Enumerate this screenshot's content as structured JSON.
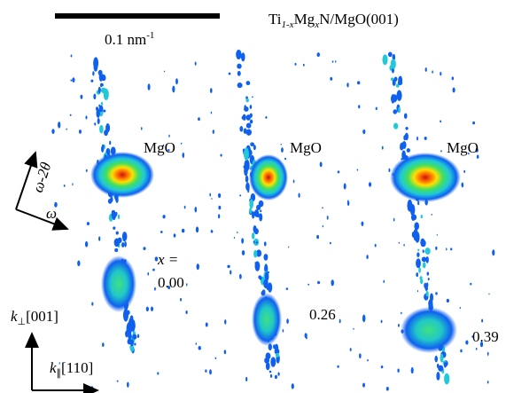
{
  "header": {
    "scale_bar": {
      "text": "0.1 nm",
      "exponent": "-1"
    },
    "title": [
      "Ti",
      "1-x",
      "Mg",
      "x",
      "N/MgO(001)"
    ]
  },
  "axes": {
    "omega_2theta": "ω-2θ",
    "omega": "ω",
    "k_perp": {
      "symbol": "k",
      "subscript": "⊥",
      "direction": "[001]"
    },
    "k_par": {
      "symbol": "k",
      "subscript": "∥",
      "direction": "[110]"
    }
  },
  "panels": [
    {
      "substrate": "MgO",
      "prefix": "x =",
      "composition": "0.00"
    },
    {
      "substrate": "MgO",
      "composition": "0.26"
    },
    {
      "substrate": "MgO",
      "composition": "0.39"
    }
  ]
}
